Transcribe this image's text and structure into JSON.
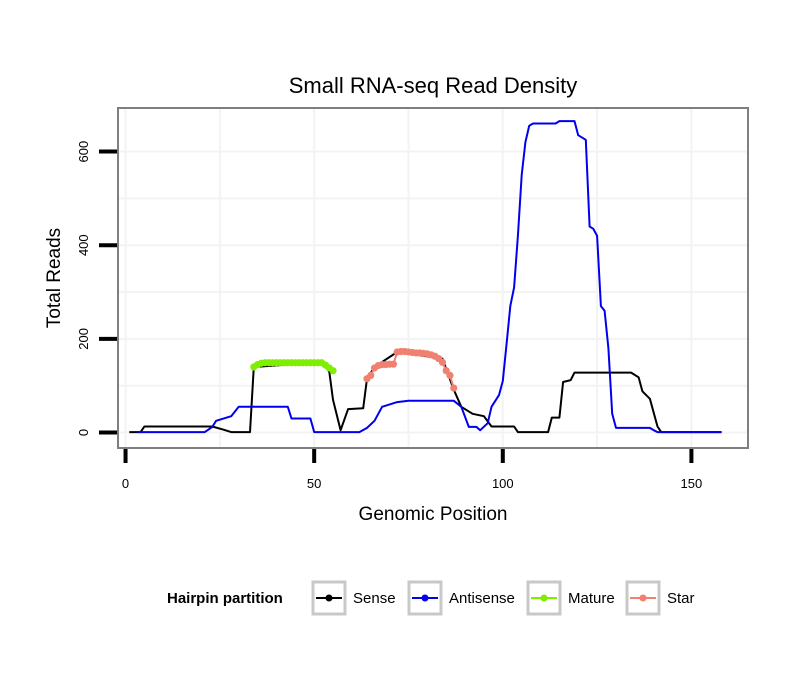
{
  "chart_data": {
    "type": "line",
    "title": "Small RNA-seq Read Density",
    "xlabel": "Genomic Position",
    "ylabel": "Total Reads",
    "xlim": [
      -2,
      165
    ],
    "ylim": [
      -33,
      693
    ],
    "x_ticks": [
      0,
      50,
      100,
      150
    ],
    "x_tick_labels": [
      "0",
      "50",
      "100",
      "150"
    ],
    "y_ticks": [
      0,
      200,
      400,
      600
    ],
    "y_tick_labels": [
      "0",
      "200",
      "400",
      "600"
    ],
    "grid": true,
    "legend": {
      "title": "Hairpin partition",
      "position": "bottom",
      "entries": [
        {
          "name": "Sense",
          "color": "#000000"
        },
        {
          "name": "Antisense",
          "color": "#0000ee"
        },
        {
          "name": "Mature",
          "color": "#7fee00"
        },
        {
          "name": "Star",
          "color": "#f08070"
        }
      ]
    },
    "series": [
      {
        "name": "Sense",
        "color": "#000000",
        "points": [
          [
            1,
            1
          ],
          [
            4,
            1
          ],
          [
            5,
            13
          ],
          [
            23,
            13
          ],
          [
            26,
            6
          ],
          [
            28,
            1
          ],
          [
            33,
            1
          ],
          [
            34,
            140
          ],
          [
            52,
            150
          ],
          [
            54,
            130
          ],
          [
            55,
            70
          ],
          [
            57,
            5
          ],
          [
            59,
            50
          ],
          [
            63,
            52
          ],
          [
            64,
            115
          ],
          [
            66,
            140
          ],
          [
            72,
            172
          ],
          [
            84,
            158
          ],
          [
            87,
            92
          ],
          [
            89,
            55
          ],
          [
            92,
            40
          ],
          [
            95,
            35
          ],
          [
            97,
            13
          ],
          [
            103,
            13
          ],
          [
            104,
            1
          ],
          [
            112,
            1
          ],
          [
            113,
            32
          ],
          [
            115,
            32
          ],
          [
            116,
            108
          ],
          [
            118,
            112
          ],
          [
            119,
            128
          ],
          [
            134,
            128
          ],
          [
            136,
            118
          ],
          [
            137,
            88
          ],
          [
            139,
            72
          ],
          [
            141,
            13
          ],
          [
            142,
            1
          ],
          [
            158,
            1
          ]
        ]
      },
      {
        "name": "Antisense",
        "color": "#0000ee",
        "points": [
          [
            3,
            1
          ],
          [
            21,
            1
          ],
          [
            23,
            12
          ],
          [
            24,
            25
          ],
          [
            28,
            35
          ],
          [
            30,
            55
          ],
          [
            39,
            55
          ],
          [
            43,
            55
          ],
          [
            44,
            30
          ],
          [
            49,
            30
          ],
          [
            50,
            1
          ],
          [
            62,
            1
          ],
          [
            64,
            10
          ],
          [
            66,
            25
          ],
          [
            68,
            55
          ],
          [
            72,
            65
          ],
          [
            75,
            68
          ],
          [
            87,
            68
          ],
          [
            89,
            55
          ],
          [
            91,
            12
          ],
          [
            93,
            12
          ],
          [
            94,
            5
          ],
          [
            96,
            20
          ],
          [
            97,
            55
          ],
          [
            99,
            80
          ],
          [
            100,
            110
          ],
          [
            101,
            190
          ],
          [
            102,
            270
          ],
          [
            103,
            310
          ],
          [
            104,
            420
          ],
          [
            105,
            550
          ],
          [
            106,
            620
          ],
          [
            107,
            655
          ],
          [
            108,
            660
          ],
          [
            114,
            660
          ],
          [
            115,
            665
          ],
          [
            119,
            665
          ],
          [
            120,
            635
          ],
          [
            122,
            625
          ],
          [
            123,
            440
          ],
          [
            124,
            435
          ],
          [
            125,
            420
          ],
          [
            126,
            270
          ],
          [
            127,
            260
          ],
          [
            128,
            180
          ],
          [
            129,
            40
          ],
          [
            130,
            10
          ],
          [
            139,
            10
          ],
          [
            140,
            5
          ],
          [
            141,
            1
          ],
          [
            158,
            1
          ]
        ]
      },
      {
        "name": "Mature",
        "color": "#7fee00",
        "points": [
          [
            34,
            140
          ],
          [
            35,
            145
          ],
          [
            36,
            148
          ],
          [
            37,
            149
          ],
          [
            38,
            149
          ],
          [
            39,
            149
          ],
          [
            40,
            149
          ],
          [
            41,
            149
          ],
          [
            42,
            149
          ],
          [
            43,
            149
          ],
          [
            44,
            149
          ],
          [
            45,
            149
          ],
          [
            46,
            149
          ],
          [
            47,
            149
          ],
          [
            48,
            149
          ],
          [
            49,
            149
          ],
          [
            50,
            149
          ],
          [
            51,
            149
          ],
          [
            52,
            149
          ],
          [
            53,
            144
          ],
          [
            54,
            138
          ],
          [
            55,
            132
          ]
        ]
      },
      {
        "name": "Star",
        "color": "#f08070",
        "points": [
          [
            64,
            115
          ],
          [
            65,
            122
          ],
          [
            66,
            138
          ],
          [
            67,
            143
          ],
          [
            68,
            145
          ],
          [
            69,
            145
          ],
          [
            70,
            146
          ],
          [
            71,
            146
          ],
          [
            72,
            172
          ],
          [
            73,
            173
          ],
          [
            74,
            173
          ],
          [
            75,
            172
          ],
          [
            76,
            171
          ],
          [
            77,
            170
          ],
          [
            78,
            170
          ],
          [
            79,
            169
          ],
          [
            80,
            168
          ],
          [
            81,
            166
          ],
          [
            82,
            163
          ],
          [
            83,
            158
          ],
          [
            84,
            150
          ],
          [
            85,
            132
          ],
          [
            86,
            122
          ],
          [
            87,
            95
          ]
        ]
      }
    ]
  }
}
